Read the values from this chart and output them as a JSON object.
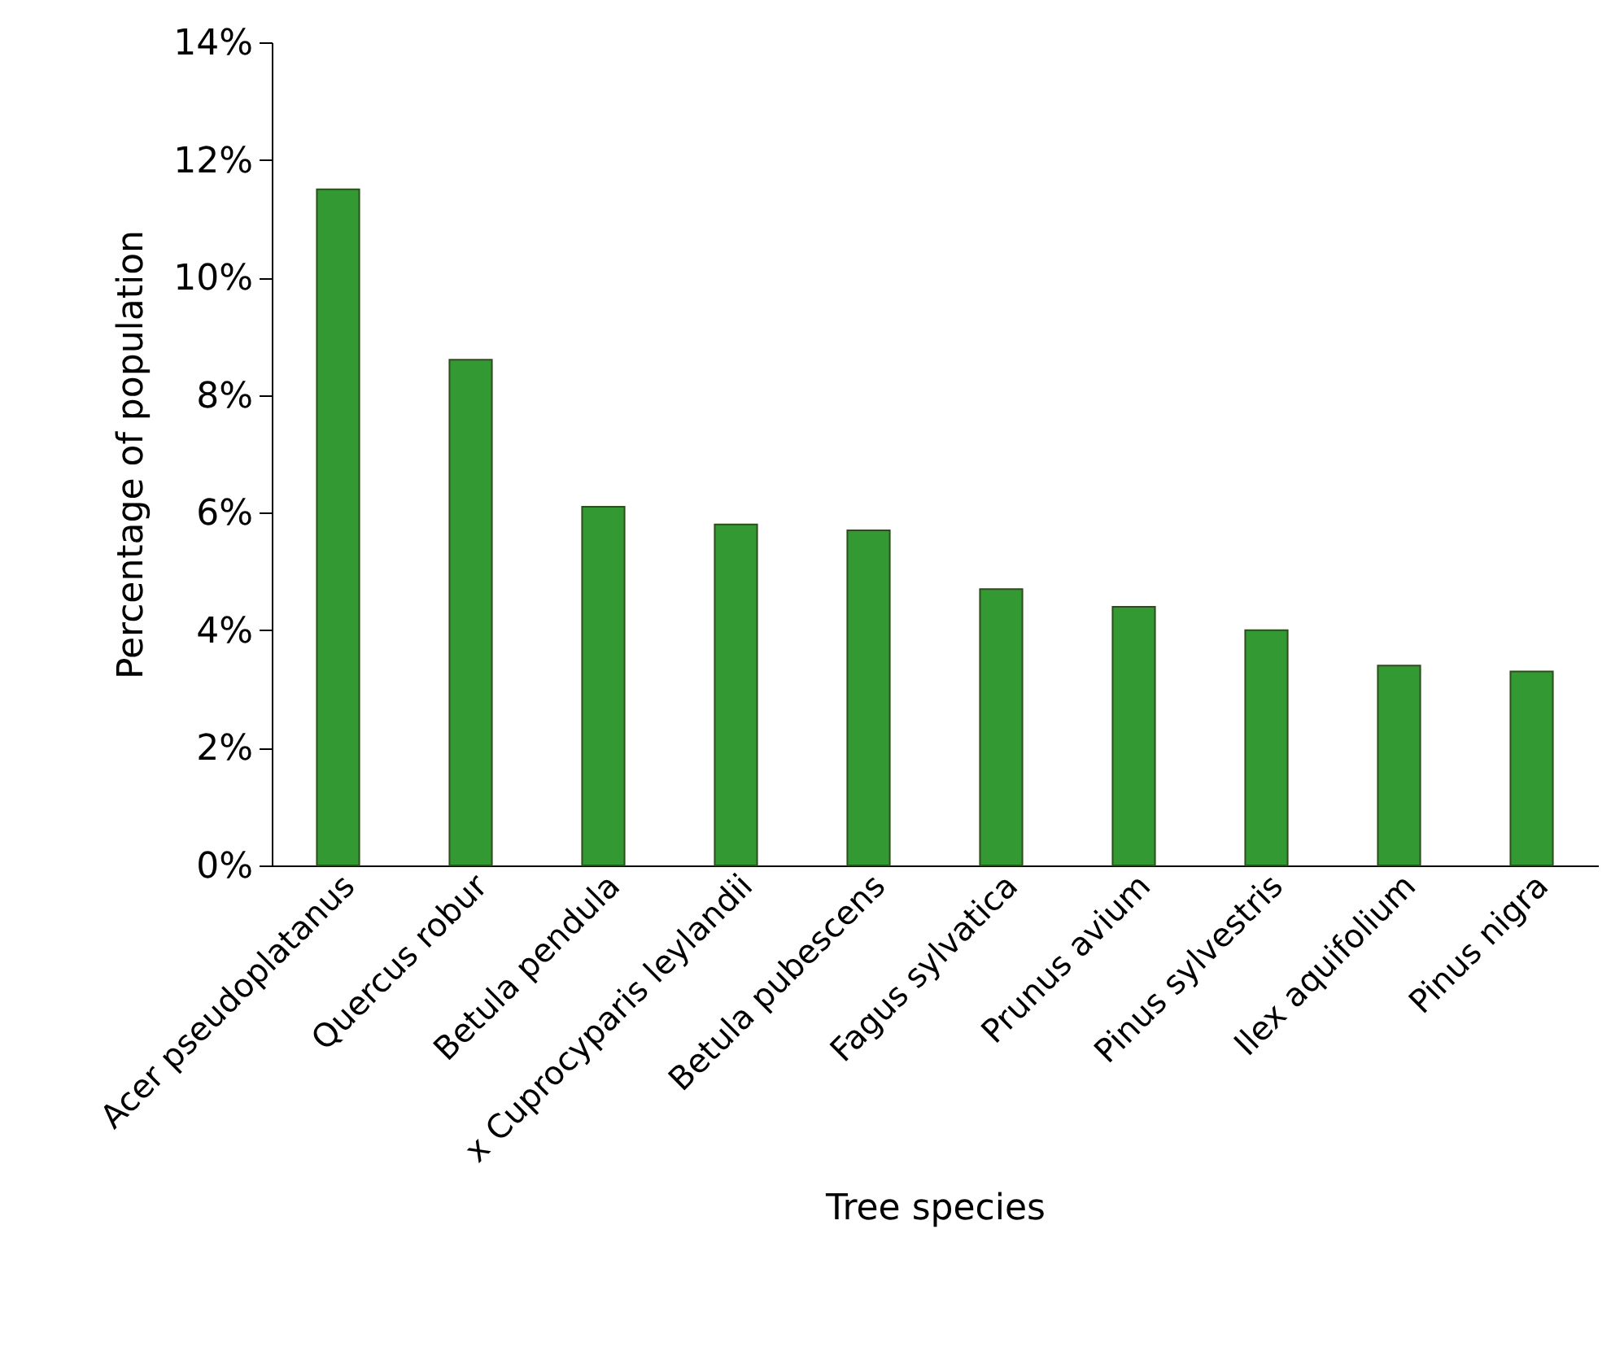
{
  "chart_data": {
    "type": "bar",
    "xlabel": "Tree species",
    "ylabel": "Percentage of population",
    "categories": [
      "Acer pseudoplatanus",
      "Quercus robur",
      "Betula pendula",
      "x Cuprocyparis leylandii",
      "Betula pubescens",
      "Fagus sylvatica",
      "Prunus avium",
      "Pinus sylvestris",
      "Ilex aquifolium",
      "Pinus nigra"
    ],
    "values": [
      11.5,
      8.6,
      6.1,
      5.8,
      5.7,
      4.7,
      4.4,
      4.0,
      3.4,
      3.3
    ],
    "color": "#339933",
    "ylim": [
      0,
      14
    ],
    "yticks": [
      {
        "value": 0,
        "label": "0%"
      },
      {
        "value": 2,
        "label": "2%"
      },
      {
        "value": 4,
        "label": "4%"
      },
      {
        "value": 6,
        "label": "6%"
      },
      {
        "value": 8,
        "label": "8%"
      },
      {
        "value": 10,
        "label": "10%"
      },
      {
        "value": 12,
        "label": "12%"
      },
      {
        "value": 14,
        "label": "14%"
      }
    ],
    "grid": false
  }
}
